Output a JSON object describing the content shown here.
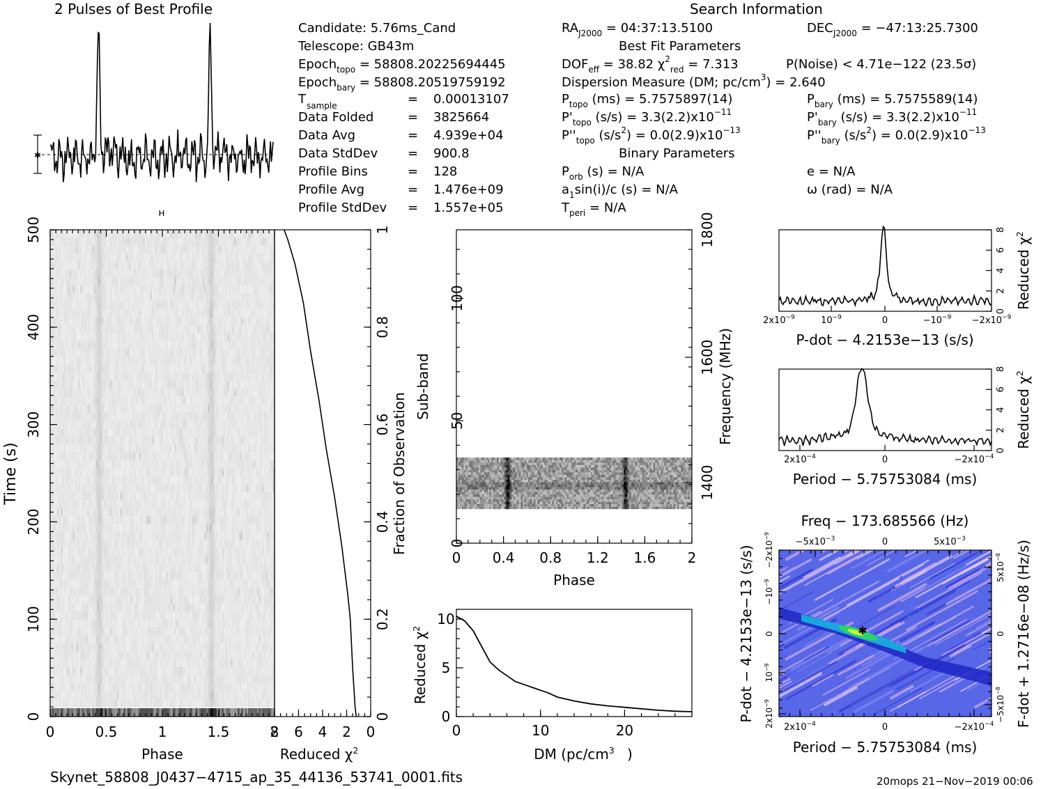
{
  "header": {
    "profile_title": "2 Pulses of Best Profile",
    "search_title": "Search Information",
    "candidate": "Candidate:  5.76ms_Cand",
    "telescope": "Telescope:  GB43m",
    "epoch_topo": "58808.20225694445",
    "epoch_bary": "58808.20519759192",
    "t_sample": "0.00013107",
    "data_folded": "3825664",
    "data_avg": "4.939e+04",
    "data_stddev": "900.8",
    "profile_bins": "128",
    "profile_avg": "1.476e+09",
    "profile_stddev": "1.557e+05",
    "ra": "04:37:13.5100",
    "dec": "−47:13:25.7300",
    "best_fit_title": "Best Fit Parameters",
    "dof_eff": "38.82",
    "chi2_red": "7.313",
    "p_noise": "P(Noise) < 4.71e−122  (23.5σ)",
    "dm_value": "2.640",
    "p_topo": "5.7575897(14)",
    "p_bary": "5.7575589(14)",
    "pdot_topo": "3.3(2.2)x10",
    "pdot_bary": "3.3(2.2)x10",
    "pdot_exp": "−11",
    "pddot_topo": "0.0(2.9)x10",
    "pddot_bary": "0.0(2.9)x10",
    "pddot_exp": "−13",
    "binary_title": "Binary Parameters",
    "p_orb": "N/A",
    "a1sini": "N/A",
    "t_peri": "N/A",
    "ecc": "N/A",
    "omega": "N/A"
  },
  "footer": {
    "filename": "Skynet_58808_J0437−4715_ap_35_44136_53741_0001.fits",
    "stamp": "20mops 21−Nov−2019 00:06"
  },
  "chart_data": [
    {
      "id": "profile",
      "type": "line",
      "title": "2 Pulses of Best Profile",
      "x": "phase 0–2, 256 bins",
      "pulse_phases": [
        0.43,
        1.43
      ],
      "peak_relative": 1.0,
      "baseline_relative": 0.0
    },
    {
      "id": "time_phase",
      "type": "heatmap",
      "xlabel": "Phase",
      "ylabel": "Time (s)",
      "xlim": [
        0,
        2
      ],
      "ylim": [
        0,
        500
      ],
      "xticks": [
        "0",
        "0.5",
        "1",
        "1.5",
        "2"
      ],
      "yticks": [
        "0",
        "100",
        "200",
        "300",
        "400",
        "500"
      ],
      "bright_stripes_phase": [
        0.43,
        1.43
      ]
    },
    {
      "id": "cum_chi2",
      "type": "line",
      "xlabel": "Reduced χ",
      "ylabel": "Fraction of Observation",
      "xlim": [
        8,
        0
      ],
      "ylim": [
        0,
        1
      ],
      "xticks": [
        "8",
        "6",
        "4",
        "2",
        "0"
      ],
      "yticks": [
        "0",
        "0.2",
        "0.4",
        "0.6",
        "0.8",
        "1"
      ],
      "points": [
        [
          1.2,
          0
        ],
        [
          1.3,
          0.02
        ],
        [
          1.5,
          0.1
        ],
        [
          1.6,
          0.15
        ],
        [
          1.7,
          0.2
        ],
        [
          1.9,
          0.25
        ],
        [
          2.4,
          0.35
        ],
        [
          3.0,
          0.45
        ],
        [
          3.7,
          0.55
        ],
        [
          4.3,
          0.65
        ],
        [
          5.0,
          0.75
        ],
        [
          5.6,
          0.85
        ],
        [
          6.3,
          0.93
        ],
        [
          6.9,
          0.98
        ],
        [
          7.2,
          1.0
        ]
      ]
    },
    {
      "id": "subband_phase",
      "type": "heatmap",
      "xlabel": "Phase",
      "ylabel": "Sub-band",
      "y2label": "Frequency (MHz)",
      "xlim": [
        0,
        2
      ],
      "ylim": [
        0,
        128
      ],
      "xticks": [
        "0",
        "0.4",
        "0.8",
        "1.2",
        "1.6",
        "2"
      ],
      "yticks": [
        "0",
        "50",
        "100"
      ],
      "y2ticks": [
        "1400",
        "1600",
        "1800"
      ],
      "data_band_subbands": [
        14,
        35
      ]
    },
    {
      "id": "dm_chi2",
      "type": "line",
      "xlabel": "DM (pc/cm",
      "ylabel": "Reduced χ",
      "xlim": [
        0,
        28
      ],
      "ylim": [
        0,
        11
      ],
      "xticks": [
        "0",
        "10",
        "20"
      ],
      "yticks": [
        "0",
        "5",
        "10"
      ],
      "points": [
        [
          0,
          10.3
        ],
        [
          1,
          9.8
        ],
        [
          2,
          8.8
        ],
        [
          3,
          7.2
        ],
        [
          4,
          5.6
        ],
        [
          5,
          4.8
        ],
        [
          6,
          4.2
        ],
        [
          7,
          3.6
        ],
        [
          8,
          3.3
        ],
        [
          9,
          3.0
        ],
        [
          10,
          2.7
        ],
        [
          11,
          2.4
        ],
        [
          12,
          2.0
        ],
        [
          14,
          1.6
        ],
        [
          16,
          1.3
        ],
        [
          18,
          1.1
        ],
        [
          20,
          0.95
        ],
        [
          22,
          0.8
        ],
        [
          24,
          0.65
        ],
        [
          26,
          0.55
        ],
        [
          28,
          0.5
        ]
      ]
    },
    {
      "id": "pdot_chi2",
      "type": "line",
      "xlabel": "P-dot − 4.2153e−13 (s/s)",
      "ylabel": "Reduced χ",
      "xlim": [
        2e-09,
        -2e-09
      ],
      "ylim": [
        0,
        8
      ],
      "xticks": [
        "2x10",
        "10",
        "0",
        "−10",
        "−2x10"
      ],
      "yticks": [
        "0",
        "2",
        "4",
        "6",
        "8"
      ],
      "peak": [
        0,
        7.3
      ]
    },
    {
      "id": "period_chi2",
      "type": "line",
      "xlabel": "Period − 5.75753084 (ms)",
      "ylabel": "Reduced χ",
      "xlim": [
        0.00025,
        -0.00025
      ],
      "ylim": [
        0,
        8
      ],
      "xticks": [
        "2x10",
        "0",
        "−2x10"
      ],
      "yticks": [
        "0",
        "2",
        "4",
        "6",
        "8"
      ],
      "peak": [
        6e-05,
        7.3
      ]
    },
    {
      "id": "p_pdot",
      "type": "heatmap",
      "title": "Freq − 173.685566 (Hz)",
      "xlabel": "Period − 5.75753084 (ms)",
      "ylabel": "P-dot − 4.2153e−13 (s/s)",
      "y2label": "F-dot + 1.2716e−08 (Hz/s)",
      "top_ticks": [
        "−5x10",
        "0",
        "5x10"
      ],
      "bottom_ticks": [
        "2x10",
        "0",
        "−2x10"
      ],
      "left_ticks": [
        "2x10",
        "10",
        "0",
        "−10",
        "−2x10"
      ],
      "right_ticks": [
        "−5x10",
        "0",
        "5x10"
      ],
      "best": [
        0,
        0
      ]
    }
  ],
  "colors": {
    "axis": "#000000",
    "bg": "#ffffff",
    "ppdot_blue": "#3b4fe0",
    "ppdot_peak": "#2bd36a"
  }
}
